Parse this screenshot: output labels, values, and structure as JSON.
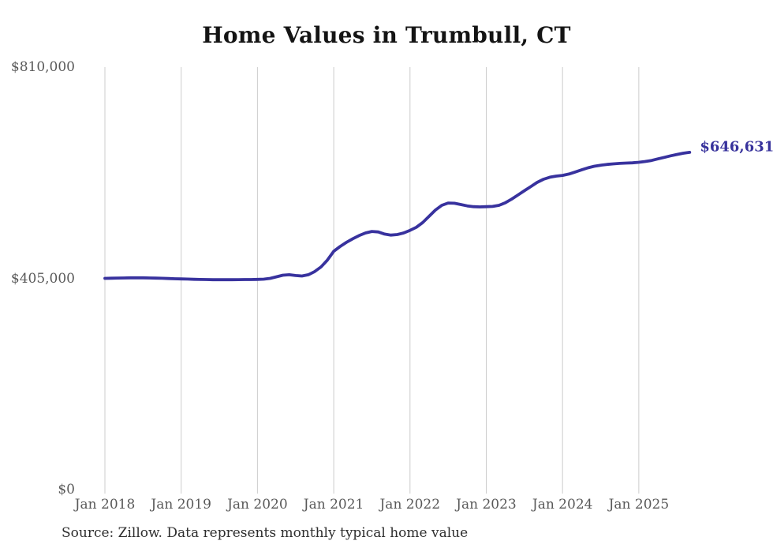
{
  "chart_data": {
    "type": "line",
    "title": "Home Values in Trumbull, CT",
    "source_note": "Source: Zillow. Data represents monthly typical home value",
    "xlabel": "",
    "ylabel": "",
    "ylim": [
      0,
      810000
    ],
    "grid": "vertical-only",
    "legend_position": "none",
    "gridline_color": "#cccccc",
    "tick_label_color": "#595959",
    "line_color": "#38329e",
    "end_label": {
      "text": "$646,631",
      "color": "#37329c"
    },
    "y_ticks": [
      {
        "value": 0,
        "label": "$0"
      },
      {
        "value": 405000,
        "label": "$405,000"
      },
      {
        "value": 810000,
        "label": "$810,000"
      }
    ],
    "x_ticks": [
      {
        "label": "Jan 2018"
      },
      {
        "label": "Jan 2019"
      },
      {
        "label": "Jan 2020"
      },
      {
        "label": "Jan 2021"
      },
      {
        "label": "Jan 2022"
      },
      {
        "label": "Jan 2023"
      },
      {
        "label": "Jan 2024"
      },
      {
        "label": "Jan 2025"
      }
    ],
    "series": [
      {
        "name": "Monthly typical home value",
        "x_start": "2018-01",
        "x_end": "2025-09",
        "x_step": "1 month",
        "values": [
          405000,
          405300,
          405600,
          405800,
          406000,
          406100,
          406000,
          405800,
          405500,
          405100,
          404700,
          404300,
          404000,
          403600,
          403200,
          402900,
          402700,
          402500,
          402400,
          402400,
          402500,
          402600,
          402700,
          402800,
          403000,
          403500,
          405000,
          408000,
          411000,
          412000,
          410500,
          409500,
          412000,
          418000,
          427000,
          440000,
          457000,
          466000,
          474000,
          481000,
          487000,
          492000,
          495000,
          494000,
          490000,
          488000,
          489000,
          492000,
          497000,
          503000,
          512000,
          524000,
          536000,
          545000,
          549500,
          549000,
          546500,
          544000,
          542500,
          542000,
          542500,
          543000,
          545000,
          550000,
          557000,
          565000,
          573000,
          581000,
          589000,
          595000,
          599000,
          601000,
          602500,
          605000,
          609000,
          613000,
          617000,
          620000,
          622000,
          623500,
          624500,
          625500,
          626000,
          626500,
          627500,
          629000,
          631000,
          634000,
          637000,
          640000,
          642500,
          645000,
          646631
        ]
      }
    ]
  }
}
